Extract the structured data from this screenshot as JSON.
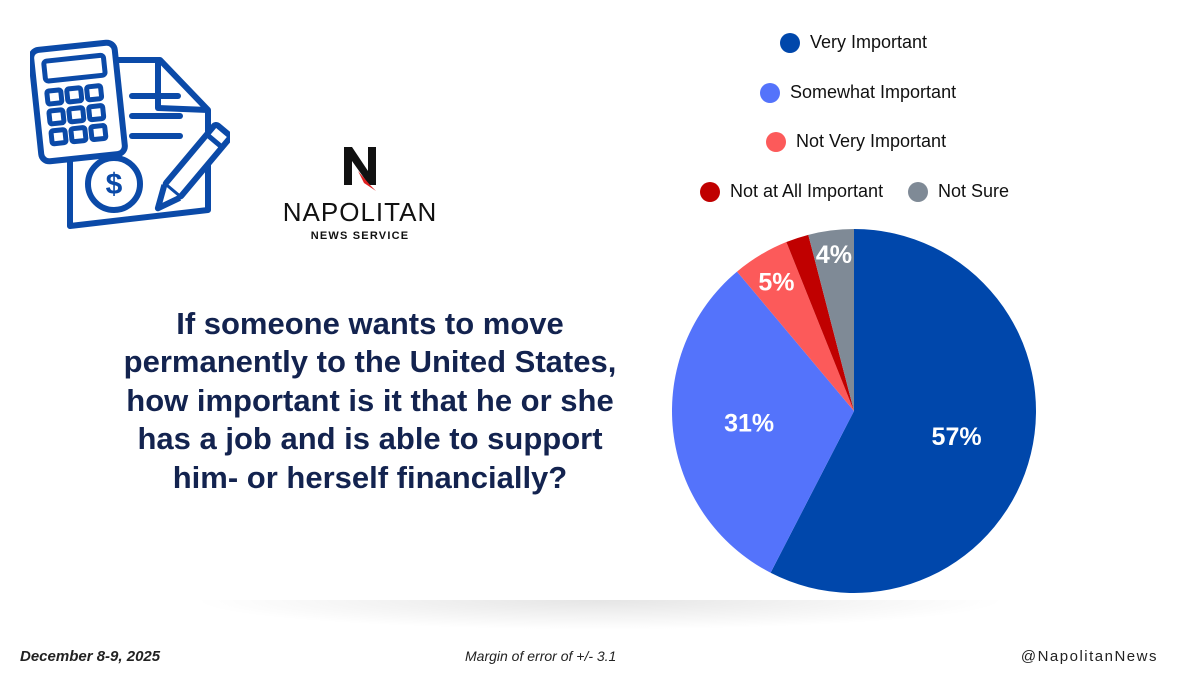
{
  "logo": {
    "name": "NAPOLITAN",
    "subtitle": "NEWS SERVICE"
  },
  "question": "If someone wants to move permanently to the United States, how important is it that he or she has a job and is able to support him- or herself financially?",
  "chart_data": {
    "type": "pie",
    "categories": [
      "Very Important",
      "Somewhat Important",
      "Not Very Important",
      "Not at All Important",
      "Not Sure"
    ],
    "values": [
      57,
      31,
      5,
      2,
      4
    ],
    "labels": [
      "57%",
      "31%",
      "5%",
      "",
      "4%"
    ],
    "colors": [
      "#0047ab",
      "#5473fb",
      "#fc5a5a",
      "#c00000",
      "#7f8a96"
    ],
    "legend_position": "top-right",
    "start": "12 o'clock",
    "direction": "clockwise"
  },
  "footer": {
    "date": "December 8-9, 2025",
    "margin_of_error": "Margin of error of +/- 3.1",
    "handle": "@NapolitanNews"
  },
  "icons": {
    "header_illustration": "calculator-invoice-dollar-pencil-icon",
    "logo_mark": "napolitan-n-logo-icon"
  }
}
